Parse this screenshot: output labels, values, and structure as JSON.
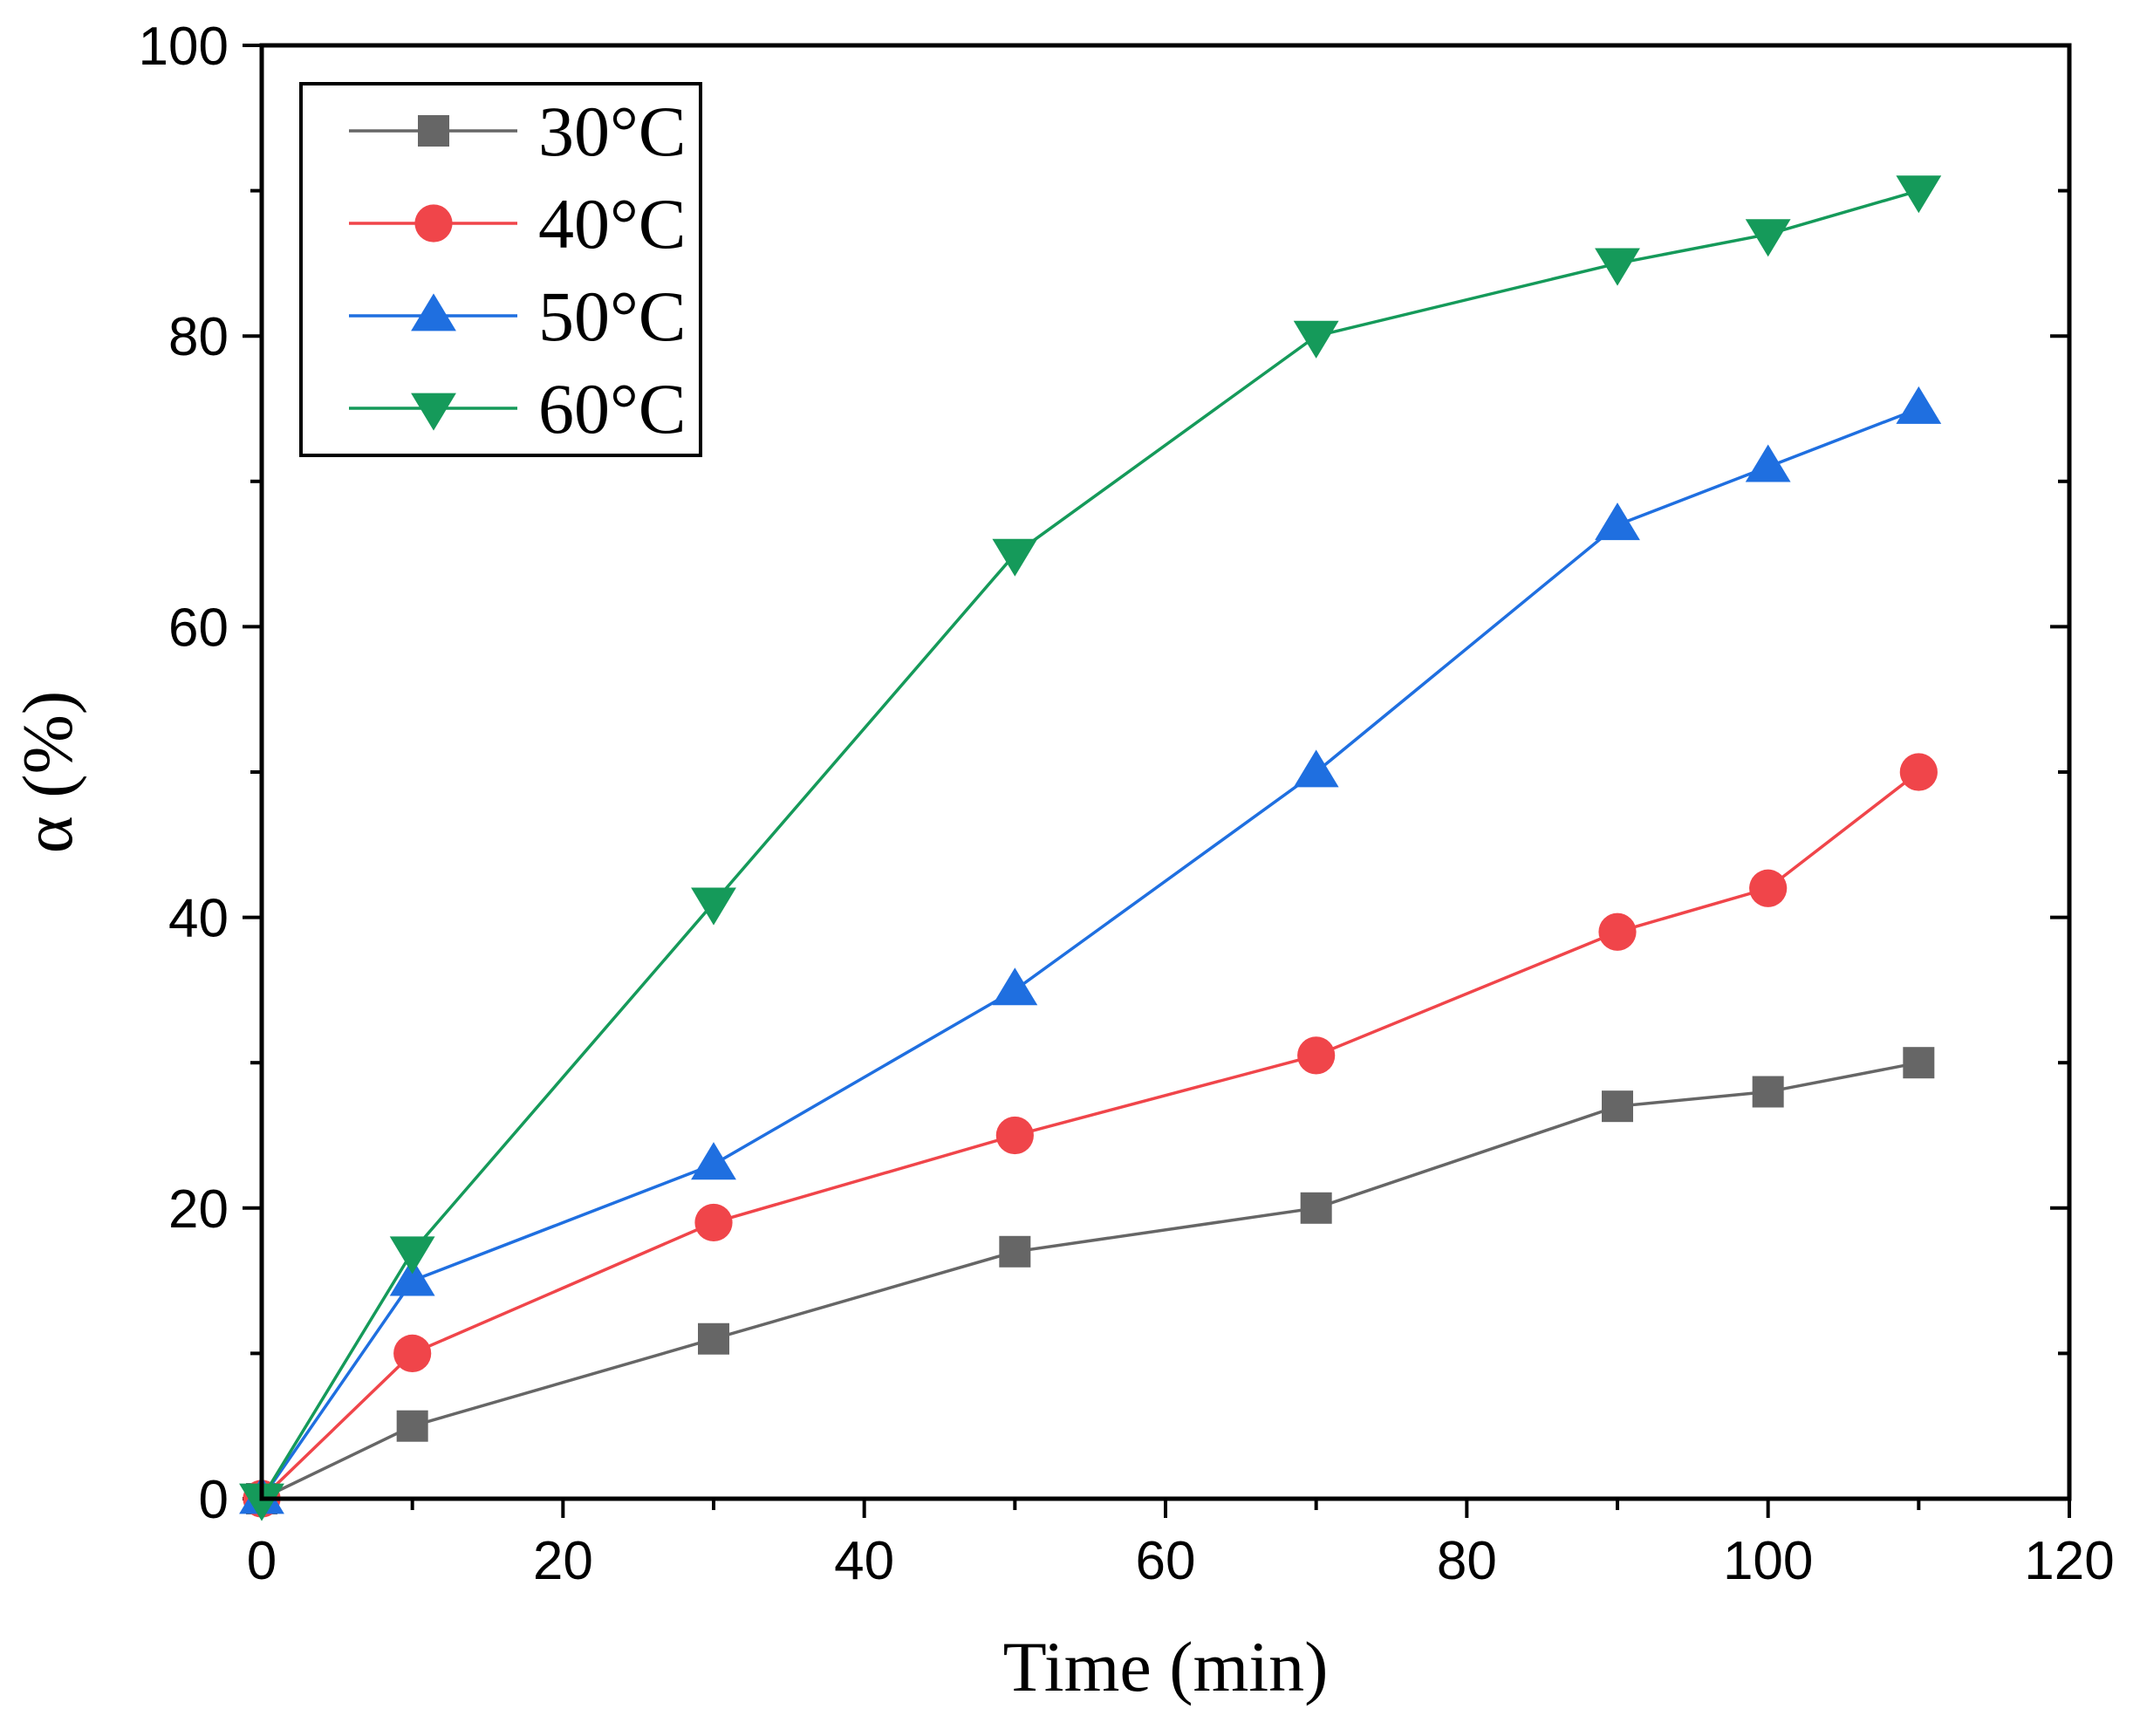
{
  "chart_data": {
    "type": "line",
    "title": "",
    "xlabel": "Time (min)",
    "ylabel": "α (%)",
    "xlim": [
      0,
      120
    ],
    "ylim": [
      0,
      100
    ],
    "xticks": [
      "0",
      "20",
      "40",
      "60",
      "80",
      "100",
      "120"
    ],
    "yticks": [
      "0",
      "20",
      "40",
      "60",
      "80",
      "100"
    ],
    "grid": false,
    "legend_position": "top-left",
    "x": [
      0,
      10,
      30,
      50,
      70,
      90,
      100,
      110
    ],
    "series": [
      {
        "name": "30°C",
        "color": "#666666",
        "marker": "square",
        "values": [
          0,
          5,
          11,
          17,
          20,
          27,
          28,
          30
        ]
      },
      {
        "name": "40°C",
        "color": "#f0454a",
        "marker": "circle",
        "values": [
          0,
          10,
          19,
          25,
          30.5,
          39,
          42,
          50
        ]
      },
      {
        "name": "50°C",
        "color": "#1f6fe0",
        "marker": "triangle-up",
        "values": [
          0,
          15,
          23,
          35,
          50,
          67,
          71,
          75
        ]
      },
      {
        "name": "60°C",
        "color": "#159a5a",
        "marker": "triangle-down",
        "values": [
          0,
          17,
          41,
          65,
          80,
          85,
          87,
          90
        ]
      }
    ]
  }
}
